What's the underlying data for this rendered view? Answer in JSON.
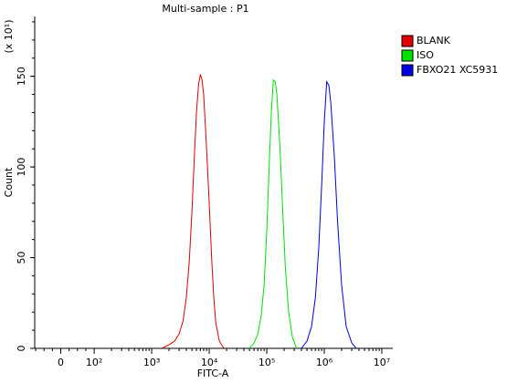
{
  "chart_data": {
    "type": "line",
    "title": "Multi-sample : P1",
    "x_label": "FITC-A",
    "y_label": "Count",
    "y_multiplier": "(x 10¹)",
    "xscale": "biexponential",
    "xlim": [
      -78,
      15500000
    ],
    "xticks": [
      {
        "value": 0,
        "label": "0"
      },
      {
        "value": 100,
        "label": "10²"
      },
      {
        "value": 1000,
        "label": "10³"
      },
      {
        "value": 10000,
        "label": "10⁴"
      },
      {
        "value": 100000,
        "label": "10⁵"
      },
      {
        "value": 1000000,
        "label": "10⁶"
      },
      {
        "value": 10000000,
        "label": "10⁷"
      }
    ],
    "ylim": [
      0,
      183
    ],
    "yticks": [
      0,
      50,
      100,
      150
    ],
    "legend": "right",
    "series": [
      {
        "name": "BLANK",
        "color": "#e00000",
        "x": [
          1500,
          2000,
          2500,
          3000,
          3500,
          4000,
          4500,
          5000,
          5500,
          6000,
          6500,
          7000,
          7500,
          8000,
          9000,
          10000,
          11000,
          12000,
          13000,
          15000,
          18000
        ],
        "values": [
          0,
          2,
          4,
          8,
          15,
          28,
          48,
          75,
          105,
          130,
          145,
          151,
          148,
          140,
          110,
          80,
          50,
          28,
          14,
          4,
          0
        ]
      },
      {
        "name": "ISO",
        "color": "#00e000",
        "x": [
          50000,
          60000,
          70000,
          80000,
          90000,
          100000,
          110000,
          120000,
          130000,
          140000,
          150000,
          170000,
          190000,
          210000,
          240000,
          280000,
          330000
        ],
        "values": [
          0,
          3,
          8,
          18,
          35,
          65,
          100,
          130,
          148,
          147,
          140,
          110,
          75,
          45,
          20,
          6,
          0
        ]
      },
      {
        "name": "FBXO21 XC5931",
        "color": "#0000e0",
        "x": [
          400000,
          500000,
          600000,
          700000,
          800000,
          900000,
          1000000,
          1100000,
          1200000,
          1300000,
          1500000,
          1700000,
          2000000,
          2400000,
          3000000,
          3600000
        ],
        "values": [
          0,
          4,
          12,
          28,
          55,
          90,
          125,
          147,
          145,
          135,
          105,
          70,
          35,
          12,
          3,
          0
        ]
      }
    ]
  }
}
